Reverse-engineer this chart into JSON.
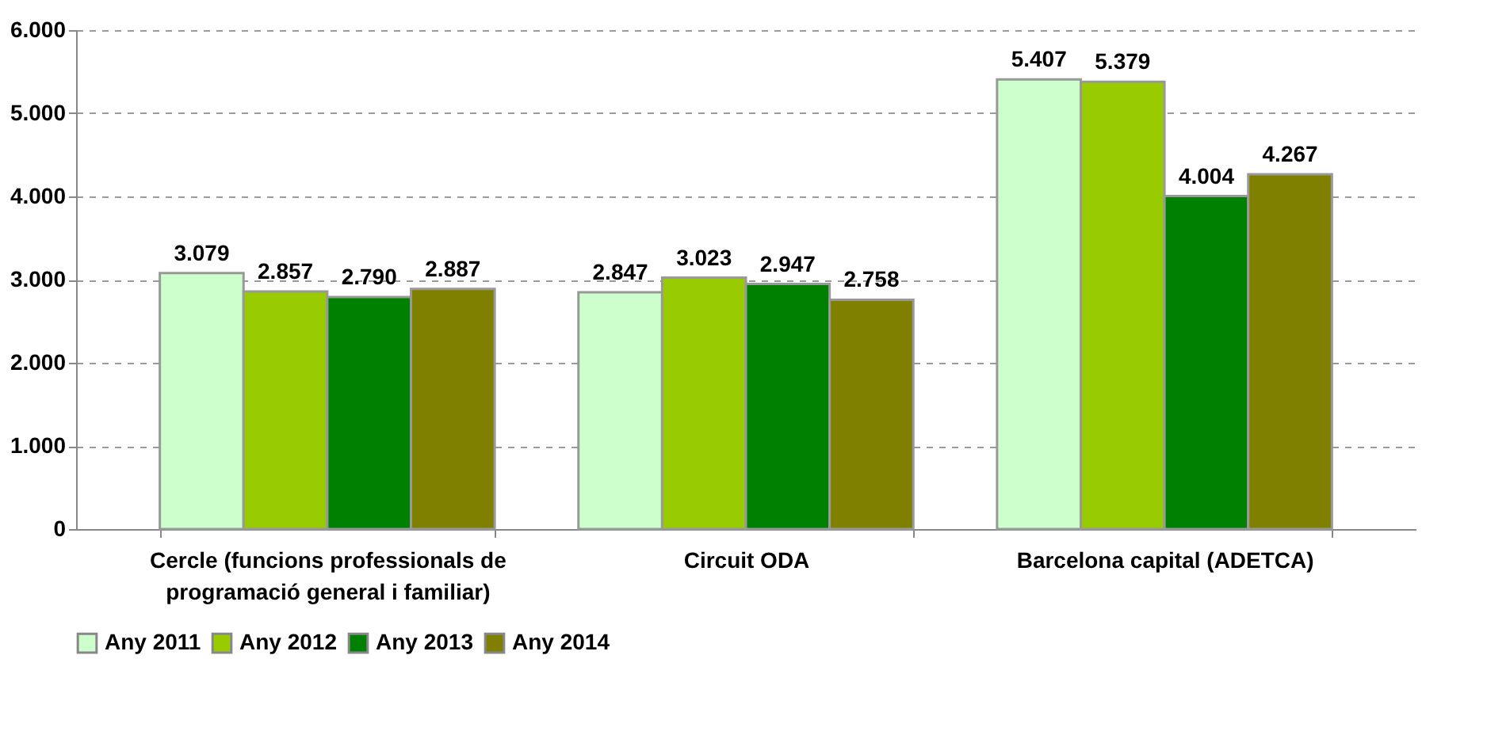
{
  "chart_data": {
    "type": "bar",
    "categories": [
      "Cercle (funcions professionals de programació general i familiar)",
      "Circuit ODA",
      "Barcelona capital (ADETCA)"
    ],
    "series": [
      {
        "name": "Any 2011",
        "color": "#ccffcc",
        "values": [
          3079,
          2847,
          5407
        ],
        "value_labels": [
          "3.079",
          "2.847",
          "5.407"
        ]
      },
      {
        "name": "Any 2012",
        "color": "#99cc00",
        "values": [
          2857,
          3023,
          5379
        ],
        "value_labels": [
          "2.857",
          "3.023",
          "5.379"
        ]
      },
      {
        "name": "Any 2013",
        "color": "#008000",
        "values": [
          2790,
          2947,
          4004
        ],
        "value_labels": [
          "2.790",
          "2.947",
          "4.004"
        ]
      },
      {
        "name": "Any 2014",
        "color": "#808000",
        "values": [
          2887,
          2758,
          4267
        ],
        "value_labels": [
          "2.887",
          "2.758",
          "4.267"
        ]
      }
    ],
    "ylim": [
      0,
      6000
    ],
    "yticks": [
      {
        "value": 0,
        "label": "0"
      },
      {
        "value": 1000,
        "label": "1.000"
      },
      {
        "value": 2000,
        "label": "2.000"
      },
      {
        "value": 3000,
        "label": "3.000"
      },
      {
        "value": 4000,
        "label": "4.000"
      },
      {
        "value": 5000,
        "label": "5.000"
      },
      {
        "value": 6000,
        "label": "6.000"
      }
    ],
    "grid": "y",
    "legend": "bottom"
  }
}
